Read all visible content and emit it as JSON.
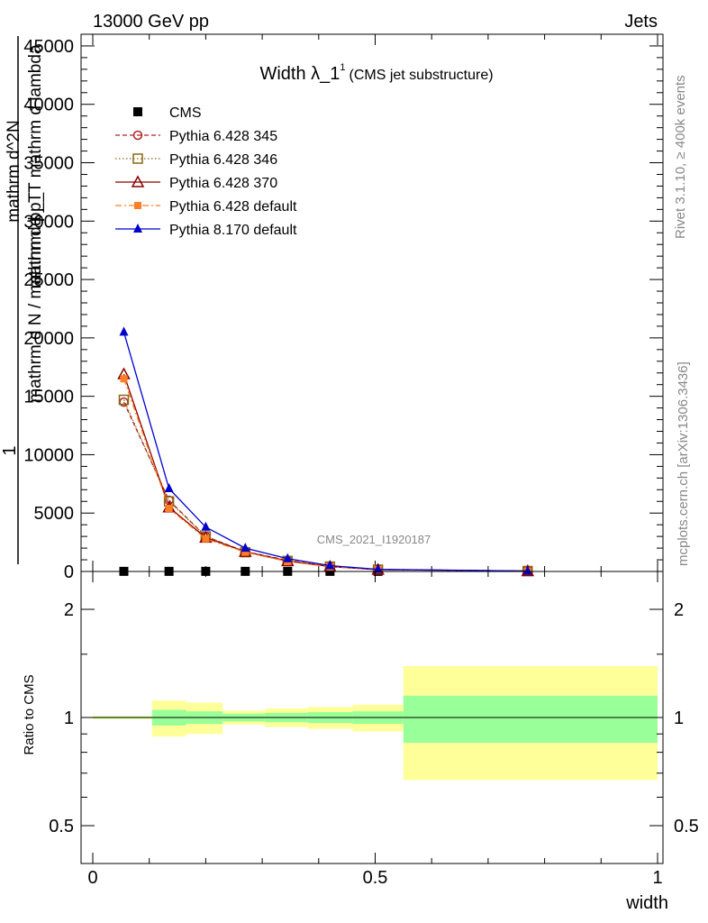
{
  "header": {
    "energy": "13000 GeV pp",
    "category": "Jets",
    "title_main": "Width λ_1",
    "title_sup": "1",
    "title_paren": "(CMS jet substructure)",
    "side_rivet": "Rivet 3.1.10, ≥ 400k events",
    "side_mcplots": "mcplots.cern.ch [arXiv:1306.3436]",
    "watermark": "CMS_2021_I1920187"
  },
  "chart_data": [
    {
      "type": "line",
      "panel": "main",
      "ylabel_lines": [
        "1",
        "mathrm d N / mathrm d p_T",
        "mathrm d^2N",
        "mathrm d p_T mathrm d lambda"
      ],
      "ylim": [
        0,
        46000
      ],
      "xlim": [
        0,
        1
      ],
      "yticks": [
        0,
        5000,
        10000,
        15000,
        20000,
        25000,
        30000,
        35000,
        40000,
        45000
      ],
      "ytick_labels": [
        "0",
        "5000",
        "10000",
        "15000",
        "20000",
        "25000",
        "30000",
        "35000",
        "40000",
        "45000"
      ],
      "x": [
        0.055,
        0.135,
        0.2,
        0.27,
        0.345,
        0.42,
        0.505,
        0.77
      ],
      "series": [
        {
          "name": "CMS",
          "color": "#000000",
          "marker": "square",
          "line": "none",
          "values": [
            10,
            10,
            10,
            10,
            10,
            10,
            10,
            10
          ]
        },
        {
          "name": "Pythia 6.428 345",
          "color": "#b22222",
          "marker": "open-circle",
          "line": "dashed",
          "values": [
            14500,
            6100,
            3000,
            1700,
            950,
            430,
            170,
            40
          ]
        },
        {
          "name": "Pythia 6.428 346",
          "color": "#8b6914",
          "marker": "open-square",
          "line": "dotted",
          "values": [
            14700,
            6000,
            3000,
            1650,
            900,
            420,
            160,
            40
          ]
        },
        {
          "name": "Pythia 6.428 370",
          "color": "#8b0000",
          "marker": "open-triangle",
          "line": "solid",
          "values": [
            16900,
            5500,
            2900,
            1700,
            900,
            420,
            160,
            40
          ]
        },
        {
          "name": "Pythia 6.428 default",
          "color": "#ff7f24",
          "marker": "filled-square",
          "line": "dashdot",
          "values": [
            16500,
            5400,
            2800,
            1650,
            850,
            400,
            150,
            35
          ]
        },
        {
          "name": "Pythia 8.170 default",
          "color": "#0000cd",
          "marker": "filled-triangle",
          "line": "solid",
          "values": [
            20500,
            7100,
            3800,
            2000,
            1100,
            500,
            180,
            40
          ]
        }
      ]
    },
    {
      "type": "area",
      "panel": "ratio",
      "ylabel": "Ratio to CMS",
      "xlabel": "width",
      "ylim": [
        0.4,
        2.2
      ],
      "xlim": [
        0,
        1
      ],
      "yticks": [
        0.5,
        1,
        2
      ],
      "ytick_labels": [
        "0.5",
        "1",
        "2"
      ],
      "xticks": [
        0,
        0.5,
        1
      ],
      "xtick_labels": [
        "0",
        "0.5",
        "1"
      ],
      "bins": [
        {
          "lo": 0.0,
          "hi": 0.105,
          "stat_lo": 0.995,
          "stat_hi": 1.005,
          "tot_lo": 0.99,
          "tot_hi": 1.01
        },
        {
          "lo": 0.105,
          "hi": 0.165,
          "stat_lo": 0.95,
          "stat_hi": 1.05,
          "tot_lo": 0.885,
          "tot_hi": 1.115
        },
        {
          "lo": 0.165,
          "hi": 0.23,
          "stat_lo": 0.96,
          "stat_hi": 1.04,
          "tot_lo": 0.9,
          "tot_hi": 1.1
        },
        {
          "lo": 0.23,
          "hi": 0.305,
          "stat_lo": 0.975,
          "stat_hi": 1.025,
          "tot_lo": 0.955,
          "tot_hi": 1.045
        },
        {
          "lo": 0.305,
          "hi": 0.38,
          "stat_lo": 0.97,
          "stat_hi": 1.03,
          "tot_lo": 0.94,
          "tot_hi": 1.06
        },
        {
          "lo": 0.38,
          "hi": 0.46,
          "stat_lo": 0.965,
          "stat_hi": 1.035,
          "tot_lo": 0.93,
          "tot_hi": 1.07
        },
        {
          "lo": 0.46,
          "hi": 0.55,
          "stat_lo": 0.96,
          "stat_hi": 1.04,
          "tot_lo": 0.915,
          "tot_hi": 1.085
        },
        {
          "lo": 0.55,
          "hi": 1.0,
          "stat_lo": 0.85,
          "stat_hi": 1.15,
          "tot_lo": 0.67,
          "tot_hi": 1.39
        }
      ],
      "colors": {
        "stat": "#99ff99",
        "total": "#ffff99"
      }
    }
  ]
}
